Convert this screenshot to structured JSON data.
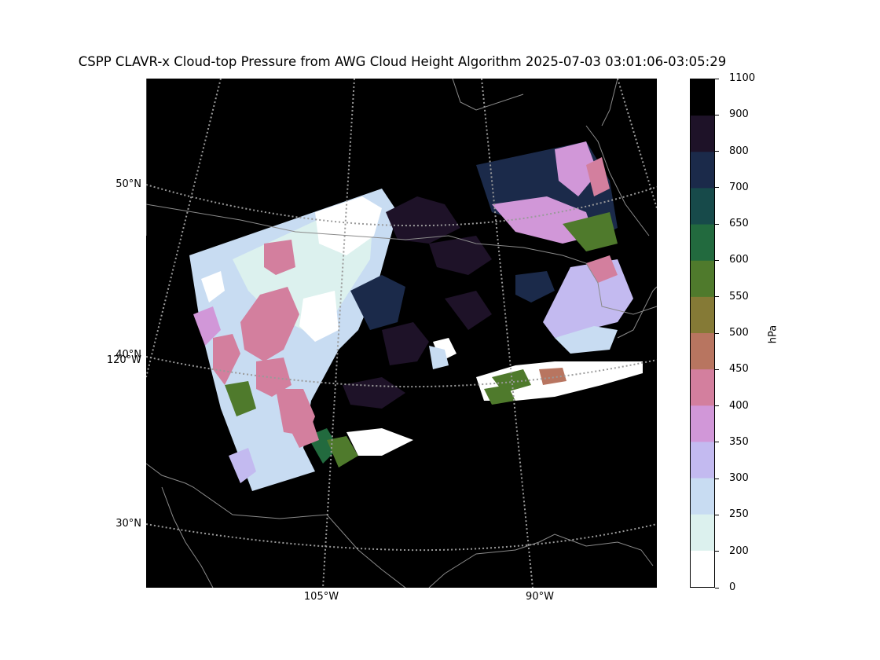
{
  "title": "CSPP CLAVR-x Cloud-top Pressure from AWG Cloud Height Algorithm 2025-07-03 03:01:06-03:05:29",
  "map": {
    "lat_labels": [
      "50°N",
      "40°N",
      "30°N"
    ],
    "lon_labels": [
      "120°W",
      "105°W",
      "90°W"
    ],
    "background": "#000000",
    "coastline_color": "#8a8a8a",
    "gridline_color": "#9a9a9a"
  },
  "colorbar": {
    "units": "hPa",
    "ticks": [
      "1100",
      "900",
      "800",
      "700",
      "650",
      "600",
      "550",
      "500",
      "450",
      "400",
      "350",
      "300",
      "250",
      "200",
      "0"
    ],
    "colors_top_to_bottom": [
      "#000000",
      "#1e1228",
      "#1b2a4a",
      "#174a4a",
      "#226a3e",
      "#4f7a2c",
      "#857a36",
      "#b87560",
      "#d37f9e",
      "#d197d8",
      "#c3baf0",
      "#c8dcf2",
      "#dcf1ee",
      "#ffffff"
    ]
  }
}
